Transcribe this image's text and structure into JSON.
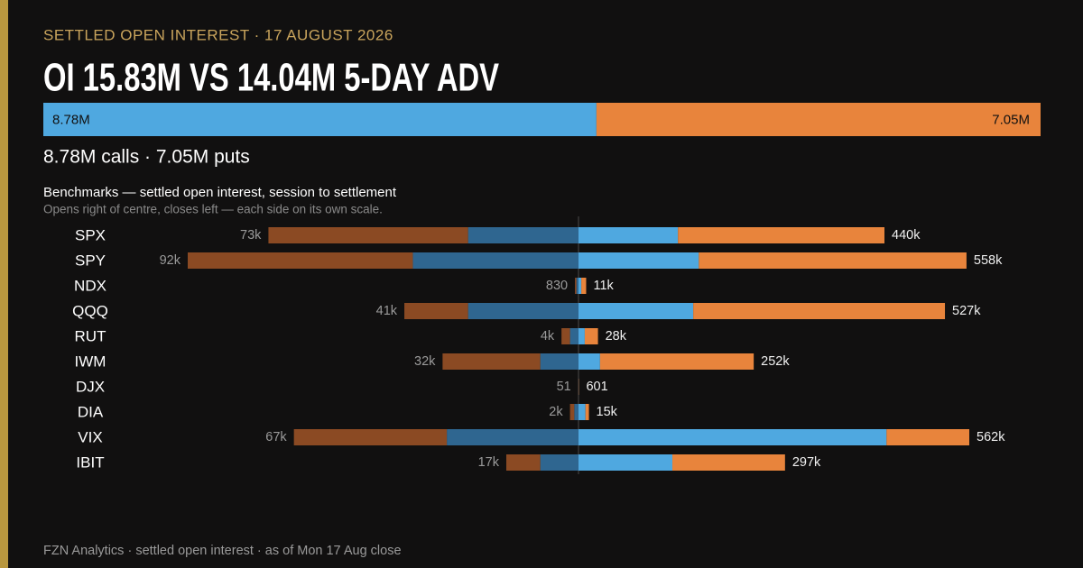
{
  "chart_data": {
    "type": "diverging_bar",
    "kicker": "SETTLED OPEN INTEREST · 17 AUGUST 2026",
    "title": "OI 15.83M VS 14.04M 5-DAY ADV",
    "split": {
      "values": [
        8780000,
        7050000
      ],
      "value_labels": [
        "8.78M",
        "7.05M"
      ],
      "colors": [
        "#4fa8e0",
        "#e8843c"
      ]
    },
    "summary": "8.78M calls · 7.05M puts",
    "subtitle": "Benchmarks — settled open interest, session to settlement",
    "note": "Opens right of centre, closes left — each side on its own scale.",
    "categories": [
      "SPX",
      "SPY",
      "NDX",
      "QQQ",
      "RUT",
      "IWM",
      "DJX",
      "DIA",
      "VIX",
      "IBIT"
    ],
    "open": {
      "xlim": [
        0,
        562000
      ],
      "series": [
        {
          "color": "#4fa8e0",
          "values": [
            143000,
            173000,
            4000,
            165000,
            9000,
            31000,
            250,
            10000,
            443000,
            135000
          ]
        },
        {
          "color": "#e8843c",
          "values": [
            297000,
            385000,
            7000,
            362000,
            19000,
            221000,
            351,
            5000,
            119000,
            162000
          ]
        }
      ],
      "totals": [
        440000,
        558000,
        11000,
        527000,
        28000,
        252000,
        601,
        15000,
        562000,
        297000
      ],
      "total_labels": [
        "440k",
        "558k",
        "11k",
        "527k",
        "28k",
        "252k",
        "601",
        "15k",
        "562k",
        "297k"
      ]
    },
    "close": {
      "xlim": [
        0,
        92000
      ],
      "series": [
        {
          "color": "#2f6690",
          "values": [
            26000,
            39000,
            500,
            26000,
            2000,
            9000,
            20,
            1000,
            31000,
            9000
          ]
        },
        {
          "color": "#8b4a23",
          "values": [
            47000,
            53000,
            330,
            15000,
            2000,
            23000,
            31,
            1000,
            36000,
            8000
          ]
        }
      ],
      "totals": [
        73000,
        92000,
        830,
        41000,
        4000,
        32000,
        51,
        2000,
        67000,
        17000
      ],
      "total_labels": [
        "73k",
        "92k",
        "830",
        "41k",
        "4k",
        "32k",
        "51",
        "2k",
        "67k",
        "17k"
      ]
    },
    "footer": "FZN Analytics · settled open interest · as of Mon 17 Aug close"
  }
}
